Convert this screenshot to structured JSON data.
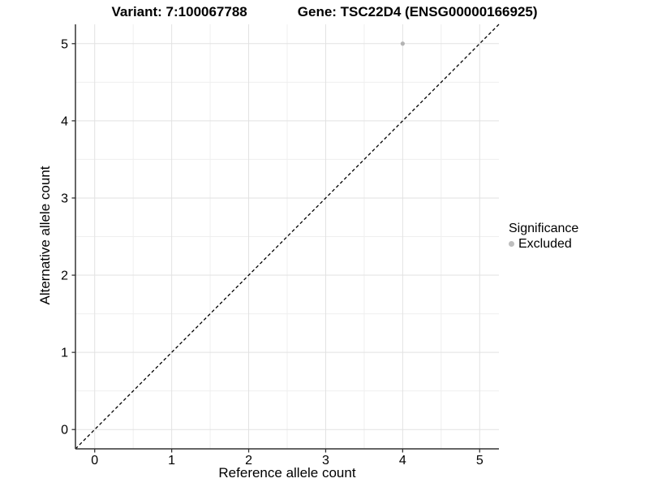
{
  "chart_data": {
    "type": "scatter",
    "title_variant": "Variant: 7:100067788",
    "title_gene": "Gene: TSC22D4 (ENSG00000166925)",
    "xlabel": "Reference allele count",
    "ylabel": "Alternative allele count",
    "xlim": [
      -0.25,
      5.25
    ],
    "ylim": [
      -0.25,
      5.25
    ],
    "x_ticks": [
      0,
      1,
      2,
      3,
      4,
      5
    ],
    "y_ticks": [
      0,
      1,
      2,
      3,
      4,
      5
    ],
    "minor_grid_step": 0.5,
    "grid": "major+minor",
    "series": [
      {
        "name": "Excluded",
        "points": [
          {
            "x": 4,
            "y": 5
          }
        ],
        "color": "#b3b3b3",
        "point_radius": 2.6
      }
    ],
    "reference_line": {
      "description": "identity line y = x",
      "x1": -0.25,
      "y1": -0.25,
      "x2": 5.25,
      "y2": 5.25,
      "style": "dashed",
      "color": "#000000"
    },
    "legend": {
      "position": "right",
      "title": "Significance",
      "entries": [
        {
          "label": "Excluded",
          "color": "#bebebe"
        }
      ]
    },
    "colors": {
      "background": "#ffffff",
      "axis_line": "#333333",
      "tick_mark": "#333333",
      "tick_label": "#000000",
      "major_grid": "#e2e2e2",
      "minor_grid": "#efefef"
    }
  }
}
